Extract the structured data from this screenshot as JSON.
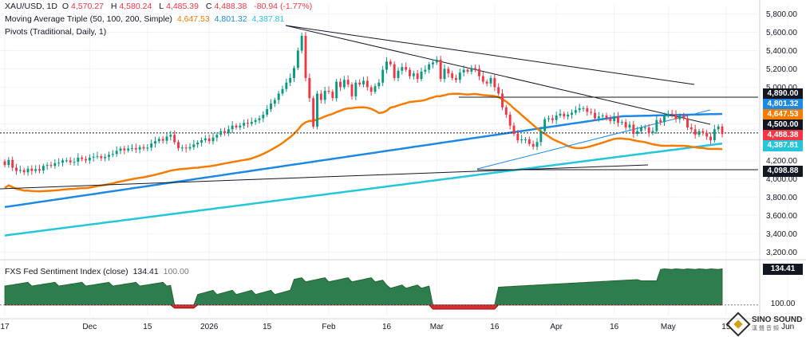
{
  "header": {
    "symbol": "XAU/USD, 1D",
    "ohlc": {
      "open_label": "O",
      "open": "4,570.27",
      "high_label": "H",
      "high": "4,580.24",
      "low_label": "L",
      "low": "4,485.39",
      "close_label": "C",
      "close": "4,488.38",
      "change": "-80.94 (-1.77%)"
    },
    "ma_title": "Moving Average Triple (50, 100, 200, Simple)",
    "ma_values": [
      "4,647.53",
      "4,801.32",
      "4,387.81"
    ],
    "pivots_title": "Pivots (Traditional, Daily, 1)"
  },
  "indicator": {
    "title": "FXS Fed Sentiment Index (close)",
    "value": "134.41",
    "baseline": "100.00"
  },
  "price_tags": {
    "p4890": "4,890.00",
    "p4801": "4,801.32",
    "p4647": "4,647.53",
    "p4500": "4,500.00",
    "p4488": "4,488.38",
    "p4387": "4,387.81",
    "p4098": "4,098.88",
    "ind_value": "134.41",
    "ind_base": "100.00"
  },
  "watermark": {
    "text": "SINO SOUND",
    "sub": "漢 聲 音 頻"
  },
  "colors": {
    "up": "#089981",
    "down": "#f23645",
    "ma50": "#f57c00",
    "ma100": "#1e88e5",
    "ma200": "#26c6da",
    "grid": "#f0f3fa",
    "indicator_fill": "#2e7d4f",
    "indicator_neg": "#d32f2f"
  },
  "chart_data": [
    {
      "type": "candlestick",
      "title": "XAU/USD, 1D",
      "y_ticks": [
        3200,
        3400,
        3600,
        3800,
        4000,
        4200,
        4400,
        4600,
        4800,
        5000,
        5200,
        5400,
        5600,
        5800
      ],
      "y_tick_labels": [
        "3,200.00",
        "3,400.00",
        "3,600.00",
        "3,800.00",
        "4,000.00",
        "4,200.00",
        "4,400.00",
        "4,600.00",
        "4,800.00",
        "5,000.00",
        "5,200.00",
        "5,400.00",
        "5,600.00",
        "5,800.00"
      ],
      "ylim": [
        3150,
        5900
      ],
      "x_tick_labels": [
        "17",
        "Dec",
        "15",
        "2026",
        "15",
        "Feb",
        "16",
        "Mar",
        "16",
        "Apr",
        "16",
        "May",
        "15",
        "Jun"
      ],
      "x_tick_index": [
        0,
        22,
        37,
        53,
        68,
        84,
        99,
        112,
        127,
        143,
        158,
        172,
        187,
        203
      ],
      "candles_close": [
        4150,
        4205,
        4120,
        4085,
        4095,
        4070,
        4110,
        4085,
        4105,
        4090,
        4140,
        4150,
        4140,
        4170,
        4175,
        4200,
        4200,
        4180,
        4185,
        4230,
        4215,
        4200,
        4230,
        4240,
        4245,
        4225,
        4240,
        4260,
        4270,
        4305,
        4330,
        4310,
        4330,
        4335,
        4320,
        4345,
        4330,
        4340,
        4385,
        4410,
        4435,
        4415,
        4460,
        4480,
        4400,
        4335,
        4340,
        4330,
        4345,
        4375,
        4395,
        4420,
        4440,
        4410,
        4450,
        4480,
        4520,
        4500,
        4540,
        4580,
        4560,
        4580,
        4610,
        4600,
        4620,
        4640,
        4660,
        4700,
        4760,
        4820,
        4860,
        4930,
        4980,
        5050,
        5100,
        5210,
        5400,
        5560,
        5100,
        4880,
        4570,
        4930,
        4860,
        4960,
        4950,
        4880,
        5060,
        5000,
        5080,
        5030,
        4900,
        5050,
        5030,
        5070,
        5000,
        4950,
        5010,
        5050,
        5190,
        5280,
        5250,
        5100,
        5180,
        5220,
        5190,
        5120,
        5150,
        5090,
        5170,
        5190,
        5250,
        5270,
        5300,
        5090,
        5200,
        5150,
        5100,
        5080,
        5160,
        5190,
        5170,
        5210,
        5200,
        5120,
        5060,
        5040,
        5100,
        5000,
        4930,
        4780,
        4700,
        4580,
        4490,
        4420,
        4430,
        4430,
        4380,
        4350,
        4400,
        4520,
        4650,
        4660,
        4640,
        4690,
        4710,
        4680,
        4700,
        4720,
        4750,
        4770,
        4770,
        4730,
        4720,
        4660,
        4680,
        4690,
        4660,
        4630,
        4680,
        4610,
        4620,
        4560,
        4590,
        4490,
        4520,
        4560,
        4560,
        4500,
        4520,
        4640,
        4620,
        4690,
        4710,
        4700,
        4650,
        4690,
        4660,
        4560,
        4540,
        4480,
        4520,
        4500,
        4460,
        4420,
        4540,
        4570,
        4488
      ],
      "ma_series": [
        {
          "name": "MA 50",
          "last": 4647.53
        },
        {
          "name": "MA 100",
          "last": 4801.32
        },
        {
          "name": "MA 200",
          "last": 4387.81
        }
      ],
      "pivot_levels": [
        4890.0,
        4098.88
      ],
      "reference_line": 4500.0
    },
    {
      "type": "area",
      "title": "FXS Fed Sentiment Index (close)",
      "baseline": 100.0,
      "last": 134.41,
      "ylim": [
        90,
        140
      ]
    }
  ]
}
